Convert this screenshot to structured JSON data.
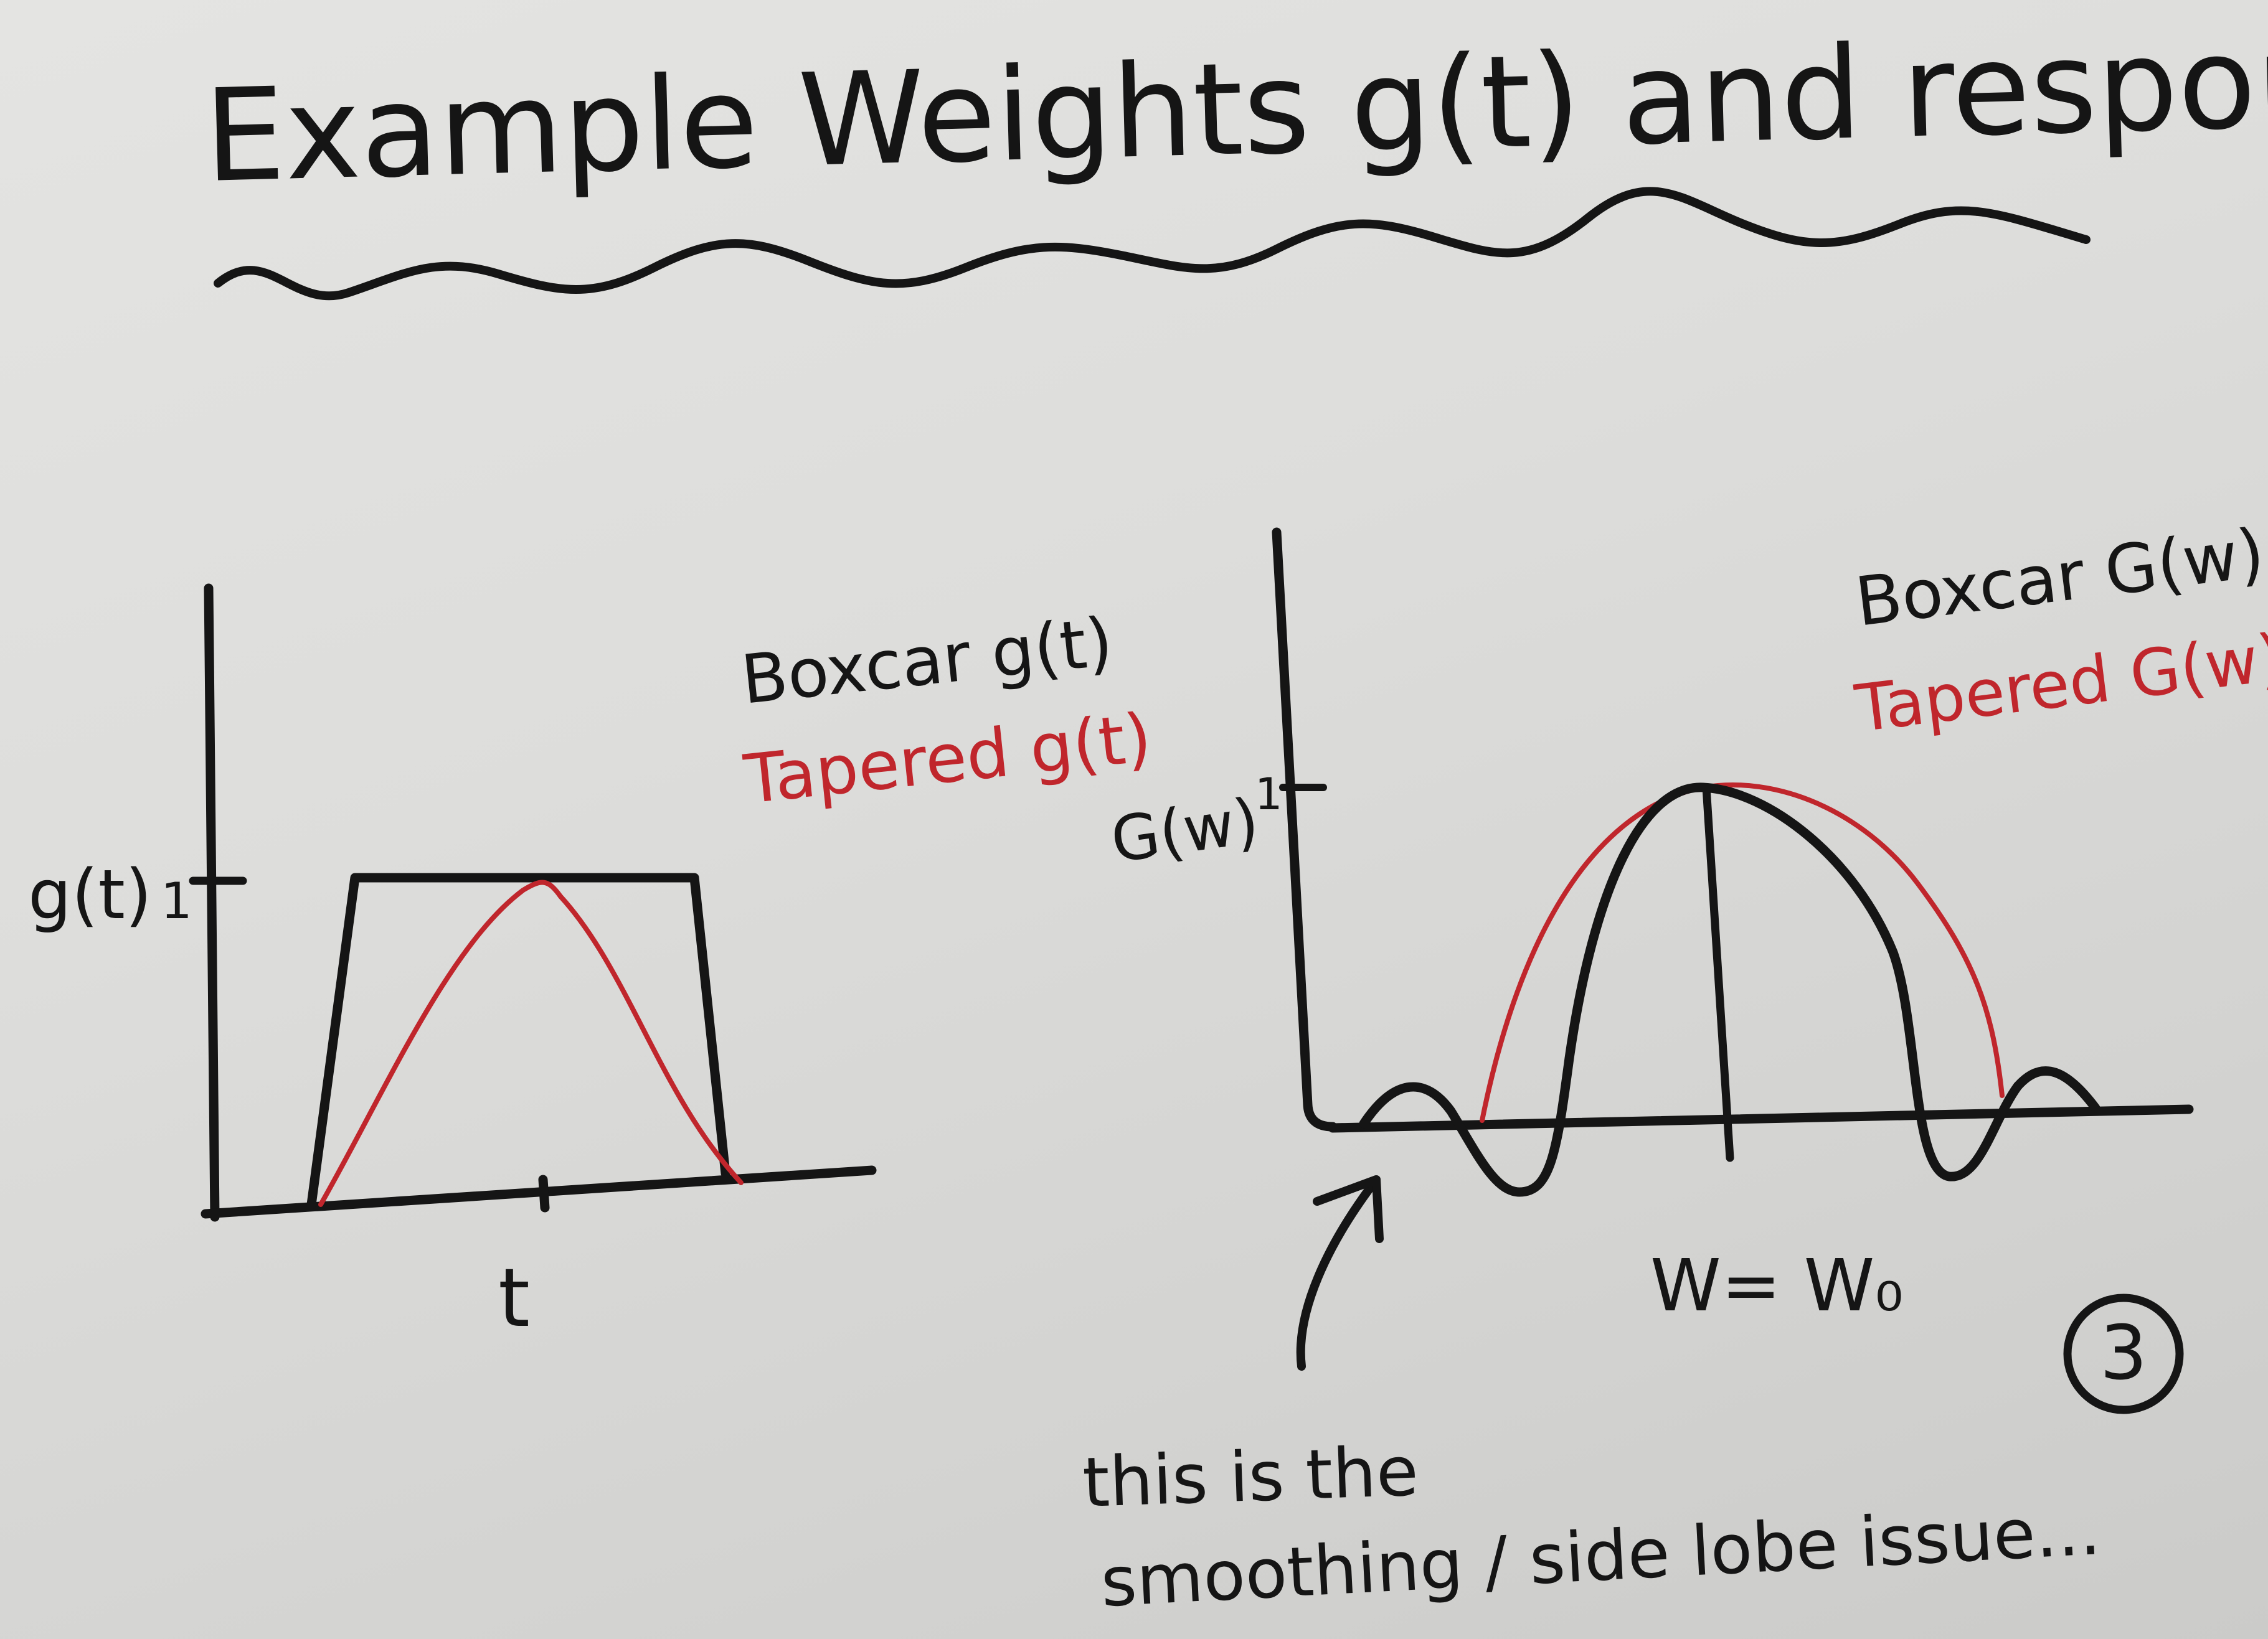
{
  "title": "Example Weights g(t) and response functions G(w)",
  "left_plot": {
    "ylabel": "g(t)",
    "ytick": "1",
    "xlabel": "t",
    "legend_boxcar": "Boxcar g(t)",
    "legend_tapered": "Tapered g(t)"
  },
  "right_plot": {
    "ylabel": "G(w)",
    "ytick": "1",
    "xlabel": "W= W₀",
    "legend_boxcar": "Boxcar G(w)",
    "legend_tapered": "Tapered G(w)"
  },
  "annotation": {
    "line1": "this is the",
    "line2": "smoothing / side lobe issue..."
  },
  "page_number": "3",
  "colors": {
    "ink": "#151515",
    "red": "#c0262c",
    "board": "#dcdcda"
  }
}
